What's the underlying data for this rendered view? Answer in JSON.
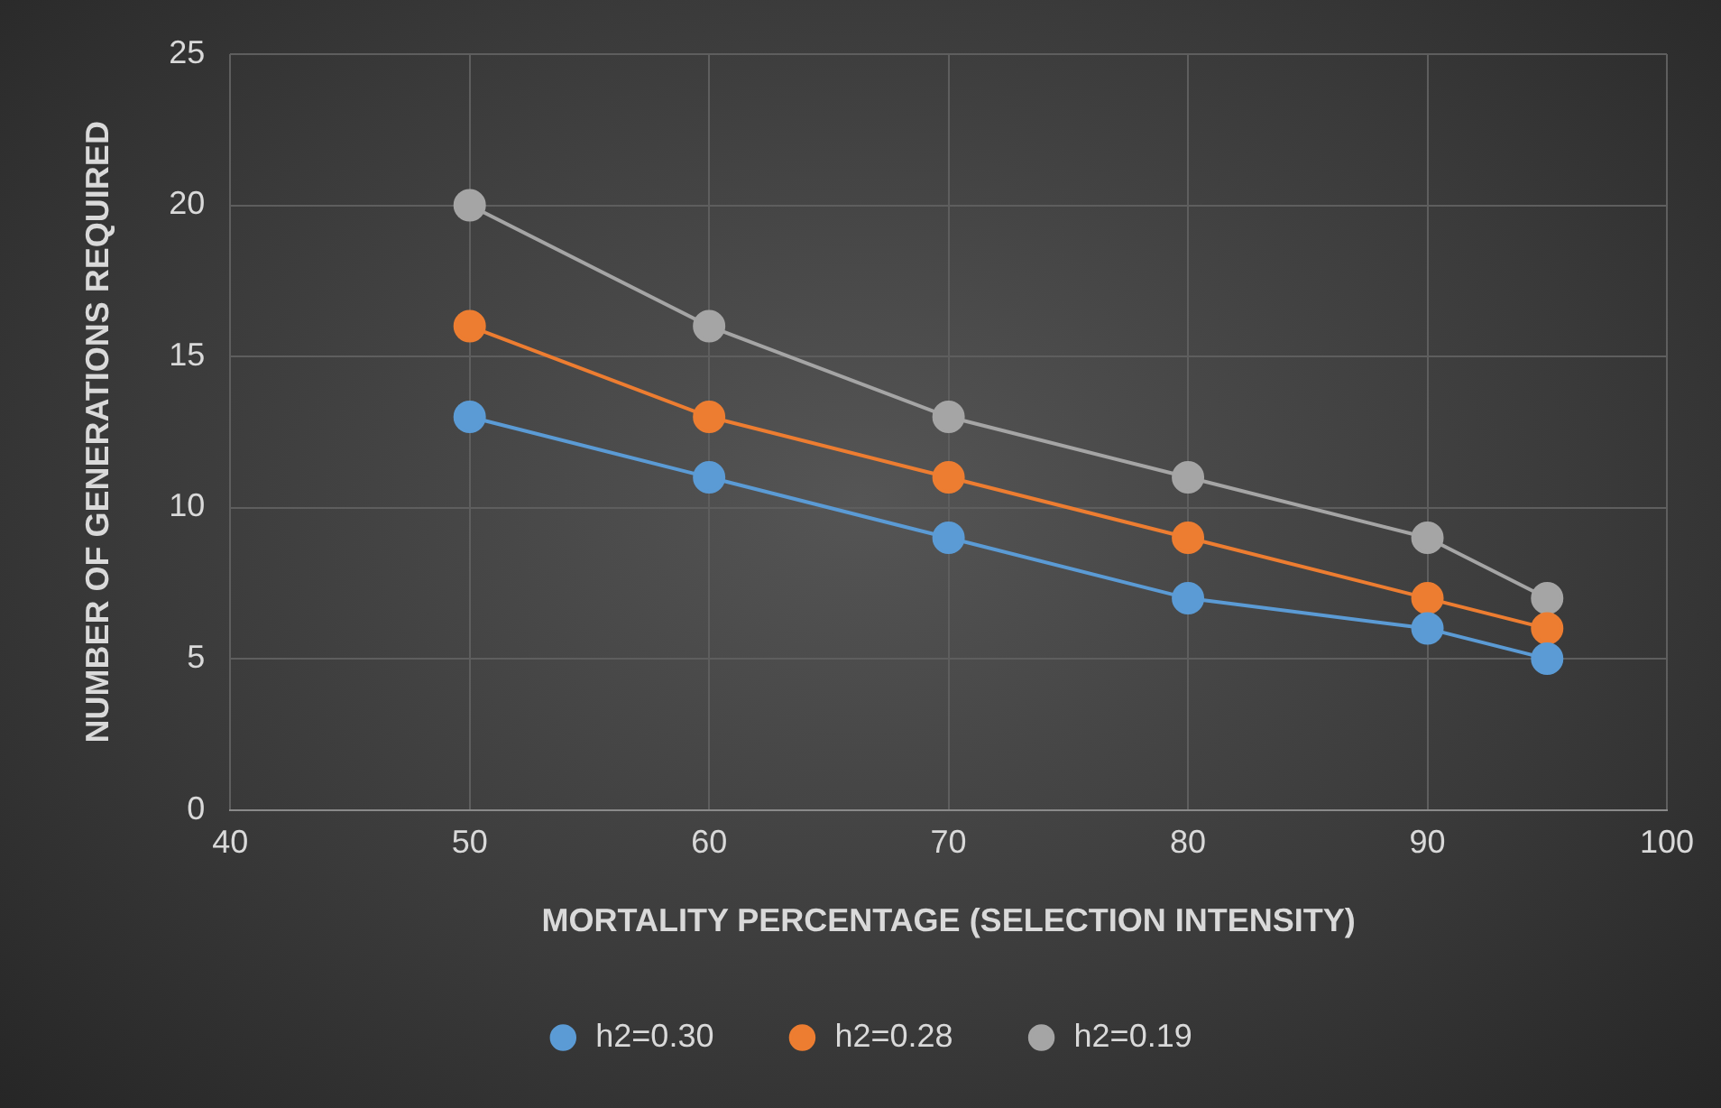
{
  "chart_data": {
    "type": "line",
    "xlabel": "MORTALITY PERCENTAGE (SELECTION INTENSITY)",
    "ylabel": "NUMBER OF GENERATIONS REQUIRED",
    "x": [
      50,
      60,
      70,
      80,
      90,
      95
    ],
    "series": [
      {
        "name": "h2=0.30",
        "color": "#5b9bd5",
        "values": [
          13,
          11,
          9,
          7,
          6,
          5
        ]
      },
      {
        "name": "h2=0.28",
        "color": "#ed7d31",
        "values": [
          16,
          13,
          11,
          9,
          7,
          6
        ]
      },
      {
        "name": "h2=0.19",
        "color": "#a5a5a5",
        "values": [
          20,
          16,
          13,
          11,
          9,
          7
        ]
      }
    ],
    "xlim": [
      40,
      100
    ],
    "xticks": [
      40,
      50,
      60,
      70,
      80,
      90,
      100
    ],
    "ylim": [
      0,
      25
    ],
    "yticks": [
      0,
      5,
      10,
      15,
      20,
      25
    ],
    "grid": true,
    "legend": "bottom",
    "marker": "circle",
    "line_style": "solid"
  }
}
